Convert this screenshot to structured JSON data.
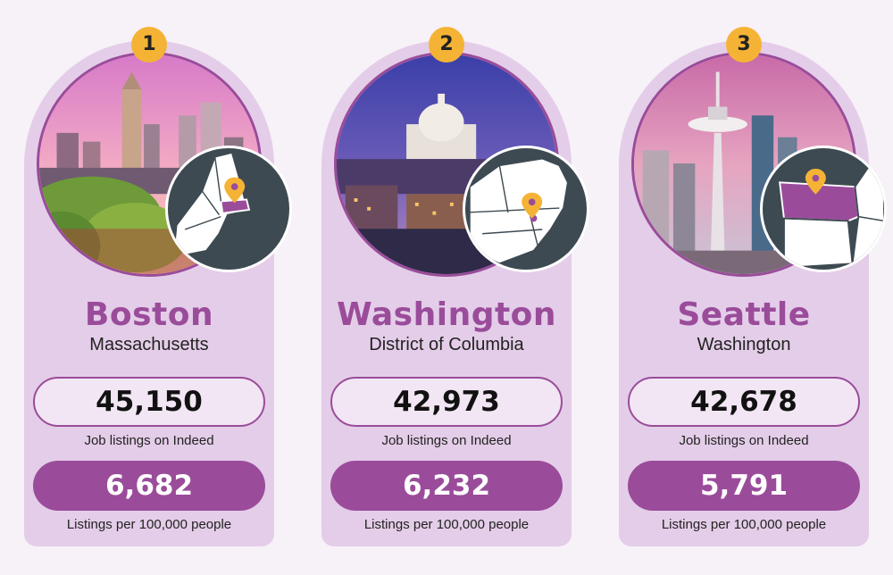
{
  "cities": [
    {
      "rank": "1",
      "city": "Boston",
      "state": "Massachusetts",
      "job_listings": "45,150",
      "job_listings_label": "Job listings on Indeed",
      "per_capita": "6,682",
      "per_capita_label": "Listings per 100,000 people"
    },
    {
      "rank": "2",
      "city": "Washington",
      "state": "District of Columbia",
      "job_listings": "42,973",
      "job_listings_label": "Job listings on Indeed",
      "per_capita": "6,232",
      "per_capita_label": "Listings per 100,000 people"
    },
    {
      "rank": "3",
      "city": "Seattle",
      "state": "Washington",
      "job_listings": "42,678",
      "job_listings_label": "Job listings on Indeed",
      "per_capita": "5,791",
      "per_capita_label": "Listings per 100,000 people"
    }
  ],
  "colors": {
    "accent": "#9a4c9a",
    "card": "#e4cde8",
    "badge": "#f5b335",
    "map_bg": "#3e4a52"
  },
  "icons": [
    "map-pin-icon"
  ]
}
